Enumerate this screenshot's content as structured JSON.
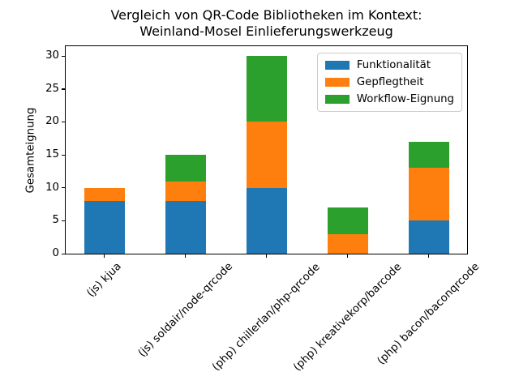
{
  "title": {
    "line1": "Vergleich von QR-Code Bibliotheken im Kontext:",
    "line2": "Weinland-Mosel Einlieferungswerkzeug"
  },
  "chart_data": {
    "type": "bar",
    "stacked": true,
    "title": "Vergleich von QR-Code Bibliotheken im Kontext:\nWeinland-Mosel Einlieferungswerkzeug",
    "categories": [
      "(js) kjua",
      "(js) soldair/node-qrcode",
      "(php) chillerlan/php-qrcode",
      "(php) kreativekorp/barcode",
      "(php) bacon/baconqrcode"
    ],
    "series": [
      {
        "name": "Funktionalität",
        "color": "#1f77b4",
        "values": [
          8,
          8,
          10,
          0,
          5
        ]
      },
      {
        "name": "Gepflegtheit",
        "color": "#ff7f0e",
        "values": [
          2,
          3,
          10,
          3,
          8
        ]
      },
      {
        "name": "Workflow-Eignung",
        "color": "#2ca02c",
        "values": [
          0,
          4,
          10,
          4,
          4
        ]
      }
    ],
    "totals": [
      10,
      15,
      30,
      7,
      17
    ],
    "xlabel": "",
    "ylabel": "Gesamteignung",
    "yticks": [
      0,
      5,
      10,
      15,
      20,
      25,
      30
    ],
    "ylim": [
      0,
      31.5
    ],
    "legend_position": "upper right",
    "grid": false,
    "bar_width_fraction": 0.5
  }
}
